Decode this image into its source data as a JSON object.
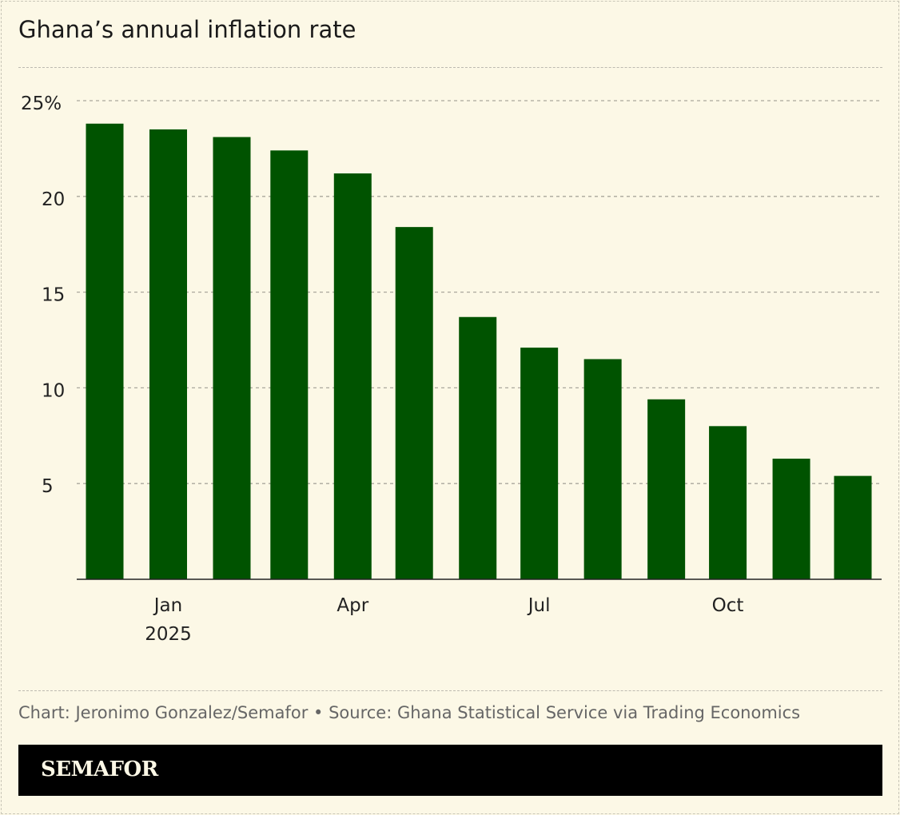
{
  "title": "Ghana’s annual inflation rate",
  "source": "Chart: Jeronimo Gonzalez/Semafor • Source: Ghana Statistical Service via Trading Economics",
  "brand": "SEMAFOR",
  "chart_data": {
    "type": "bar",
    "title": "Ghana’s annual inflation rate",
    "categories": [
      "2024-12",
      "2025-01",
      "2025-02",
      "2025-03",
      "2025-04",
      "2025-05",
      "2025-06",
      "2025-07",
      "2025-08",
      "2025-09",
      "2025-10",
      "2025-11",
      "2025-12"
    ],
    "values": [
      23.8,
      23.5,
      23.1,
      22.4,
      21.2,
      18.4,
      13.7,
      12.1,
      11.5,
      9.4,
      8.0,
      6.3,
      5.4
    ],
    "ylim": [
      0,
      25
    ],
    "yticks": [
      {
        "v": 25,
        "label": "25%"
      },
      {
        "v": 20,
        "label": "20"
      },
      {
        "v": 15,
        "label": "15"
      },
      {
        "v": 10,
        "label": "10"
      },
      {
        "v": 5,
        "label": "5"
      }
    ],
    "xticks": [
      {
        "date": "2025-01",
        "label": "Jan",
        "sub": "2025"
      },
      {
        "date": "2025-04",
        "label": "Apr",
        "sub": ""
      },
      {
        "date": "2025-07",
        "label": "Jul",
        "sub": ""
      },
      {
        "date": "2025-10",
        "label": "Oct",
        "sub": ""
      }
    ],
    "grid": true,
    "color": "#005300"
  }
}
